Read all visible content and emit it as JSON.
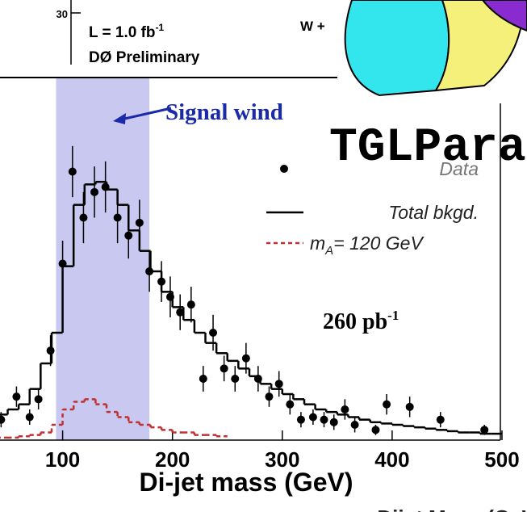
{
  "inset": {
    "ytick": "30",
    "lumi": "L = 1.0 fb",
    "lumi_sup": "-1",
    "experiment": "DØ Preliminary",
    "channel": "W +"
  },
  "overlay": {
    "label": "TGLPara"
  },
  "footer": {
    "label": "Dijet Mass (GeV)"
  },
  "chart_data": {
    "type": "histogram",
    "xlabel": "Di-jet mass  (GeV)",
    "xlim": [
      43,
      500
    ],
    "xticks": [
      100,
      200,
      300,
      400,
      500
    ],
    "ylim": [
      0,
      120
    ],
    "signal_window": {
      "range": [
        94,
        179
      ],
      "color": "#c8c8f0",
      "label": "Signal wind"
    },
    "luminosity": {
      "label": "260 pb",
      "sup": "-1"
    },
    "series": [
      {
        "name": "Data",
        "type": "errorbar",
        "color": "#000000",
        "x": [
          44,
          58,
          70,
          78,
          89,
          100,
          109,
          119,
          129,
          139,
          150,
          160,
          170,
          179,
          190,
          198,
          207,
          217,
          228,
          237,
          247,
          257,
          267,
          278,
          288,
          297,
          307,
          317,
          328,
          338,
          347,
          357,
          366,
          385,
          395,
          416,
          444,
          484
        ],
        "values": [
          8,
          17,
          9,
          16,
          35,
          69,
          105,
          87,
          97,
          99,
          87,
          80,
          85,
          66,
          62,
          56,
          50,
          53,
          24,
          42,
          28,
          24,
          32,
          24,
          17,
          22,
          14,
          8,
          9,
          8,
          7,
          12,
          6,
          4,
          14,
          13,
          8,
          4
        ],
        "errors": [
          3,
          4,
          3,
          4,
          6,
          9,
          10,
          10,
          10,
          10,
          10,
          9,
          9,
          8,
          8,
          8,
          7,
          7,
          5,
          7,
          5,
          5,
          6,
          5,
          4,
          5,
          4,
          3,
          3,
          3,
          3,
          4,
          3,
          2,
          4,
          4,
          3,
          2
        ]
      },
      {
        "name": "Total bkgd.",
        "type": "step",
        "color": "#000000",
        "bins": [
          40,
          50,
          60,
          70,
          80,
          90,
          100,
          110,
          120,
          130,
          140,
          150,
          160,
          170,
          180,
          190,
          200,
          210,
          220,
          230,
          240,
          250,
          260,
          270,
          280,
          290,
          300,
          310,
          320,
          330,
          340,
          350,
          360,
          370,
          380,
          390,
          400,
          410,
          420,
          430,
          440,
          450,
          460,
          470,
          480,
          490,
          500
        ],
        "values": [
          10,
          12,
          14,
          20,
          30,
          42,
          68,
          92,
          100,
          101,
          98,
          92,
          82,
          74,
          66,
          58,
          52,
          47,
          42,
          38,
          34,
          31,
          28,
          25,
          22,
          20,
          18,
          16,
          14,
          12,
          11,
          10,
          9,
          8,
          7,
          6.5,
          6,
          5.5,
          5,
          4.5,
          4,
          3.5,
          3,
          3,
          2.5,
          2.5
        ]
      },
      {
        "name": "m",
        "name_sub": "A",
        "name_rest": "= 120 GeV",
        "type": "step",
        "color": "#c03030",
        "dashed": true,
        "bins": [
          40,
          50,
          60,
          70,
          80,
          90,
          100,
          110,
          120,
          130,
          140,
          150,
          160,
          170,
          180,
          190,
          200,
          210,
          220,
          230,
          240,
          250
        ],
        "values": [
          1,
          1,
          1.5,
          2,
          3,
          6,
          12,
          15,
          16,
          14,
          11,
          9,
          7,
          6,
          5,
          4,
          3,
          3,
          2,
          2,
          1.5
        ]
      }
    ]
  }
}
